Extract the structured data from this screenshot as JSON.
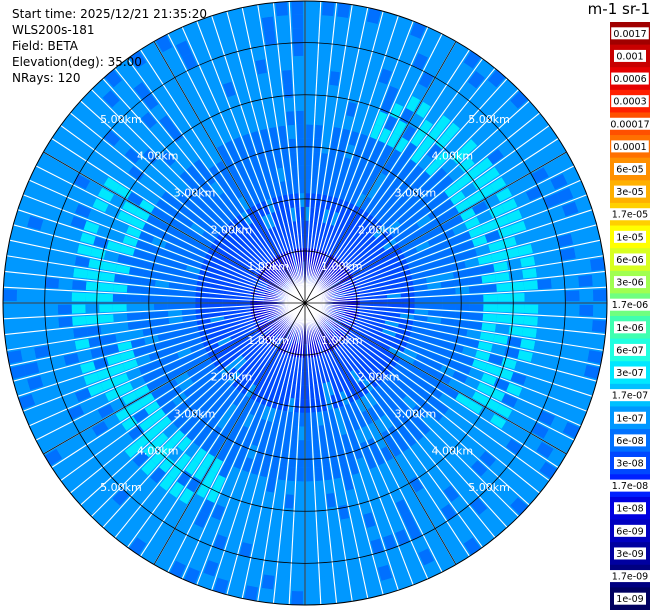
{
  "header": {
    "start_time": "Start time: 2025/12/21 21:35:20",
    "instrument": "WLS200s-181",
    "field": "Field: BETA",
    "elevation": "Elevation(deg): 35.00",
    "nrays": "NRays: 120"
  },
  "colorbar": {
    "unit_label": "m-1 sr-1",
    "ticks": [
      "0.0017",
      "0.001",
      "0.0006",
      "0.0003",
      "0.00017",
      "0.0001",
      "6e-05",
      "3e-05",
      "1.7e-05",
      "1e-05",
      "6e-06",
      "3e-06",
      "1.7e-06",
      "1e-06",
      "6e-07",
      "3e-07",
      "1.7e-07",
      "1e-07",
      "6e-08",
      "3e-08",
      "1.7e-08",
      "1e-08",
      "6e-09",
      "3e-09",
      "1.7e-09",
      "1e-09"
    ],
    "colors": [
      "#a00000",
      "#c80000",
      "#e60000",
      "#ff2000",
      "#ff5000",
      "#ff7000",
      "#ff9000",
      "#ffb000",
      "#ffd000",
      "#ffff00",
      "#d8ff20",
      "#a0ff50",
      "#70ff80",
      "#40ffb0",
      "#20ffe0",
      "#00e8ff",
      "#00c0ff",
      "#0098ff",
      "#0070ff",
      "#0048ff",
      "#0020ff",
      "#0000e0",
      "#0000c0",
      "#0000a0",
      "#000080",
      "#000060"
    ]
  },
  "chart_data": {
    "type": "polar-ppi",
    "field": "BETA",
    "nrays": 120,
    "range_rings_km": [
      1,
      2,
      3,
      4,
      5
    ],
    "ring_labels": [
      "1.00km",
      "2.00km",
      "3.00km",
      "4.00km",
      "5.00km"
    ],
    "max_range_km": 5.8,
    "spokes": 12,
    "ring_label_azimuths_deg": [
      -45,
      45,
      135,
      225
    ],
    "range_profile": [
      {
        "range_km": 0.0,
        "level": "1e-08"
      },
      {
        "range_km": 1.0,
        "level": "3e-08"
      },
      {
        "range_km": 2.0,
        "level": "6e-08"
      },
      {
        "range_km": 3.5,
        "level": "1e-07"
      },
      {
        "range_km": 4.5,
        "level": "1e-07"
      },
      {
        "range_km": 5.8,
        "level": "6e-08"
      }
    ],
    "enhanced_band": {
      "range_km": [
        3.5,
        4.5
      ],
      "level": "3e-07",
      "azimuths_deg": [
        20,
        120
      ]
    }
  }
}
